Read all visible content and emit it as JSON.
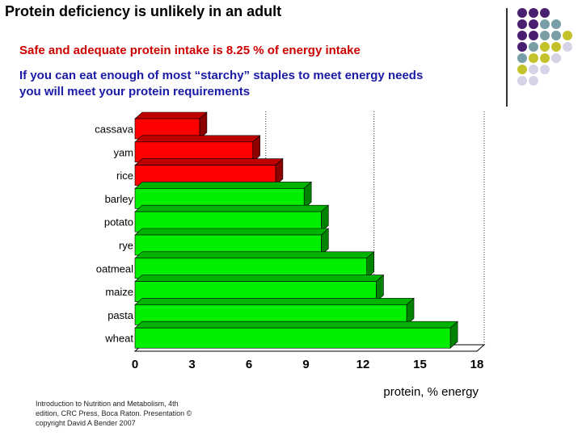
{
  "header": {
    "title": "Protein deficiency is unlikely in an adult",
    "subtitle": "Safe and adequate protein intake is 8.25 % of energy intake",
    "note_line1": "If you can eat enough of most “starchy” staples to meet energy needs",
    "note_line2": "you will meet your protein requirements"
  },
  "decor": {
    "dots": [
      {
        "row": 0,
        "col": 0,
        "color": "#4b1f6f"
      },
      {
        "row": 0,
        "col": 1,
        "color": "#4b1f6f"
      },
      {
        "row": 0,
        "col": 2,
        "color": "#4b1f6f"
      },
      {
        "row": 1,
        "col": 0,
        "color": "#4b1f6f"
      },
      {
        "row": 1,
        "col": 1,
        "color": "#4b1f6f"
      },
      {
        "row": 1,
        "col": 2,
        "color": "#7a9ea6"
      },
      {
        "row": 1,
        "col": 3,
        "color": "#7a9ea6"
      },
      {
        "row": 2,
        "col": 0,
        "color": "#4b1f6f"
      },
      {
        "row": 2,
        "col": 1,
        "color": "#4b1f6f"
      },
      {
        "row": 2,
        "col": 2,
        "color": "#7a9ea6"
      },
      {
        "row": 2,
        "col": 3,
        "color": "#7a9ea6"
      },
      {
        "row": 2,
        "col": 4,
        "color": "#c4c22a"
      },
      {
        "row": 3,
        "col": 0,
        "color": "#4b1f6f"
      },
      {
        "row": 3,
        "col": 1,
        "color": "#7a9ea6"
      },
      {
        "row": 3,
        "col": 2,
        "color": "#c4c22a"
      },
      {
        "row": 3,
        "col": 3,
        "color": "#c4c22a"
      },
      {
        "row": 3,
        "col": 4,
        "color": "#d4d4e6"
      },
      {
        "row": 4,
        "col": 0,
        "color": "#7a9ea6"
      },
      {
        "row": 4,
        "col": 1,
        "color": "#c4c22a"
      },
      {
        "row": 4,
        "col": 2,
        "color": "#c4c22a"
      },
      {
        "row": 4,
        "col": 3,
        "color": "#d4d4e6"
      },
      {
        "row": 5,
        "col": 0,
        "color": "#c4c22a"
      },
      {
        "row": 5,
        "col": 1,
        "color": "#d4d4e6"
      },
      {
        "row": 5,
        "col": 2,
        "color": "#d4d4e6"
      },
      {
        "row": 6,
        "col": 0,
        "color": "#d4d4e6"
      },
      {
        "row": 6,
        "col": 1,
        "color": "#d4d4e6"
      }
    ]
  },
  "chart_data": {
    "type": "bar",
    "orientation": "horizontal",
    "categories": [
      "cassava",
      "yam",
      "rice",
      "barley",
      "potato",
      "rye",
      "oatmeal",
      "maize",
      "pasta",
      "wheat"
    ],
    "values": [
      3.4,
      6.2,
      7.4,
      8.9,
      9.8,
      9.8,
      12.2,
      12.7,
      14.3,
      16.6
    ],
    "colors": [
      "#ff0000",
      "#ff0000",
      "#ff0000",
      "#00ee00",
      "#00ee00",
      "#00ee00",
      "#00ee00",
      "#00ee00",
      "#00ee00",
      "#00ee00"
    ],
    "xlim": [
      0,
      18
    ],
    "xticks": [
      0,
      3,
      6,
      9,
      12,
      15,
      18
    ],
    "xlabel": "protein, % energy",
    "reference_lines": [
      6.5,
      12.2,
      18
    ]
  },
  "footer": {
    "credit": "Introduction to Nutrition and Metabolism, 4th edition, CRC Press, Boca Raton. Presentation © copyright David A Bender 2007"
  }
}
